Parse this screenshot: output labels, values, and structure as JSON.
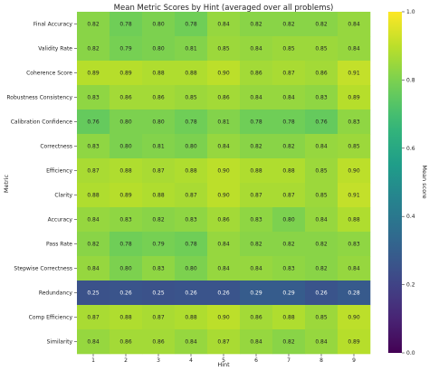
{
  "chart_data": {
    "type": "heatmap",
    "title": "Mean Metric Scores by Hint (averaged over all problems)",
    "xlabel": "Hint",
    "ylabel": "Metric",
    "x_categories": [
      "1",
      "2",
      "3",
      "4",
      "5",
      "6",
      "7",
      "8",
      "9"
    ],
    "y_categories": [
      "Final Accuracy",
      "Validity Rate",
      "Coherence Score",
      "Robustness Consistency",
      "Calibration Confidence",
      "Correctness",
      "Efficiency",
      "Clarity",
      "Accuracy",
      "Pass Rate",
      "Stepwise Correctness",
      "Redundancy",
      "Comp Efficiency",
      "Similarity"
    ],
    "values": [
      [
        0.82,
        0.78,
        0.8,
        0.78,
        0.84,
        0.82,
        0.82,
        0.82,
        0.84
      ],
      [
        0.82,
        0.79,
        0.8,
        0.81,
        0.85,
        0.84,
        0.85,
        0.85,
        0.84
      ],
      [
        0.89,
        0.89,
        0.88,
        0.88,
        0.9,
        0.86,
        0.87,
        0.86,
        0.91
      ],
      [
        0.83,
        0.86,
        0.86,
        0.85,
        0.86,
        0.84,
        0.84,
        0.83,
        0.89
      ],
      [
        0.76,
        0.8,
        0.8,
        0.78,
        0.81,
        0.78,
        0.78,
        0.76,
        0.83
      ],
      [
        0.83,
        0.8,
        0.81,
        0.8,
        0.84,
        0.82,
        0.82,
        0.84,
        0.85
      ],
      [
        0.87,
        0.88,
        0.87,
        0.88,
        0.9,
        0.88,
        0.88,
        0.85,
        0.9
      ],
      [
        0.88,
        0.89,
        0.88,
        0.87,
        0.9,
        0.87,
        0.87,
        0.85,
        0.91
      ],
      [
        0.84,
        0.83,
        0.82,
        0.83,
        0.86,
        0.83,
        0.8,
        0.84,
        0.88
      ],
      [
        0.82,
        0.78,
        0.79,
        0.78,
        0.84,
        0.82,
        0.82,
        0.82,
        0.83
      ],
      [
        0.84,
        0.8,
        0.83,
        0.8,
        0.84,
        0.84,
        0.83,
        0.82,
        0.84
      ],
      [
        0.25,
        0.26,
        0.25,
        0.26,
        0.26,
        0.29,
        0.29,
        0.26,
        0.28
      ],
      [
        0.87,
        0.88,
        0.87,
        0.88,
        0.9,
        0.86,
        0.88,
        0.85,
        0.9
      ],
      [
        0.84,
        0.86,
        0.86,
        0.84,
        0.87,
        0.84,
        0.82,
        0.84,
        0.89
      ]
    ],
    "cell_label_format": "2 decimals",
    "vmin": 0.0,
    "vmax": 1.0,
    "colormap": "viridis",
    "colorbar": {
      "label": "Mean score",
      "ticks": [
        "0.0",
        "0.2",
        "0.4",
        "0.6",
        "0.8",
        "1.0"
      ]
    },
    "grid": false
  }
}
